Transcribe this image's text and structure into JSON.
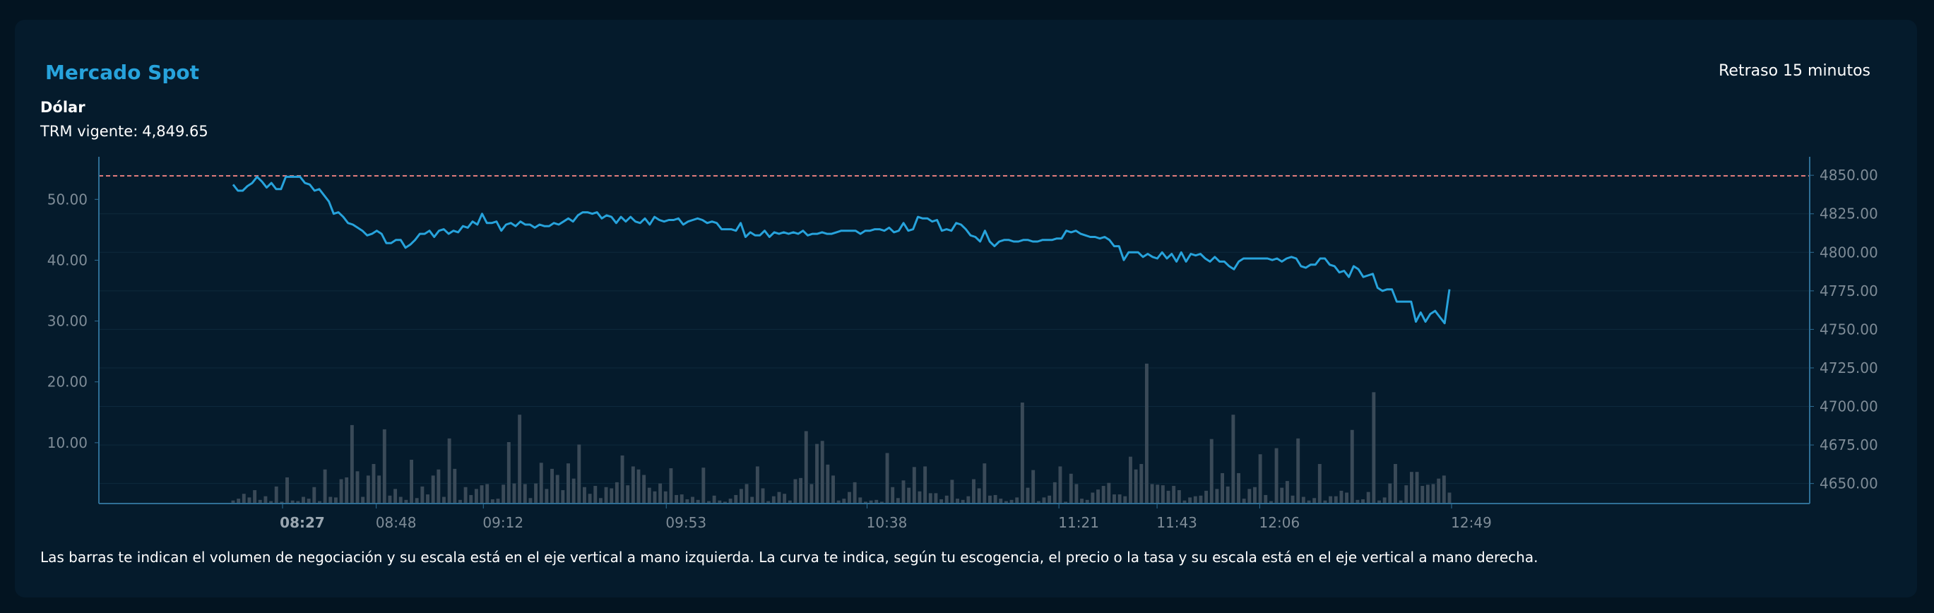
{
  "header": {
    "title": "Mercado Spot",
    "delay_label": "Retraso 15 minutos",
    "currency": "Dólar",
    "trm_label": "TRM vigente:",
    "trm_value": "4,849.65"
  },
  "footnote": "Las barras te indican el volumen de negociación y su escala está en el eje vertical a mano izquierda. La curva te indica, según tu escogencia, el precio o la tasa y su escala está en el eje vertical a mano derecha.",
  "colors": {
    "line": "#27a3dc",
    "bars": "#3a4a58",
    "reference": "#e07a7a",
    "axis": "#2f6f96"
  },
  "chart_data": {
    "type": "bar+line",
    "x_ticks": [
      "08:27",
      "08:48",
      "09:12",
      "09:53",
      "10:38",
      "11:21",
      "11:43",
      "12:06",
      "12:49"
    ],
    "x_tick_bold": "08:27",
    "left_axis": {
      "ticks": [
        "10.00",
        "20.00",
        "30.00",
        "40.00",
        "50.00"
      ],
      "ylim": [
        0,
        57
      ]
    },
    "right_axis": {
      "ticks": [
        "4650.00",
        "4675.00",
        "4700.00",
        "4725.00",
        "4750.00",
        "4775.00",
        "4800.00",
        "4825.00",
        "4850.00"
      ],
      "ylim": [
        4637,
        4862
      ]
    },
    "reference_line": 4849.65,
    "series": [
      {
        "kind": "bar",
        "axis": "left",
        "values": [
          0.5,
          0.8,
          1.6,
          1,
          2.2,
          0.6,
          1.2,
          0.4,
          2.8,
          0.3,
          4.3,
          0.5,
          0.4,
          1.1,
          0.8,
          2.7,
          0.4,
          5.6,
          1.1,
          1,
          4,
          4.3,
          12.9,
          5.3,
          1.1,
          4.6,
          6.5,
          4.6,
          12.2,
          1.3,
          2.4,
          1.1,
          0.6,
          7.2,
          0.9,
          2.8,
          1.5,
          4.6,
          5.6,
          1.1,
          10.7,
          5.7,
          0.6,
          2.7,
          1.4,
          2.4,
          3,
          3.2,
          0.7,
          0.8,
          3.1,
          10.1,
          3.3,
          14.6,
          3.2,
          0.9,
          3.3,
          6.7,
          2.4,
          5.7,
          4.7,
          2.2,
          6.6,
          4.1,
          9.7,
          2.7,
          1.6,
          2.9,
          0.9,
          2.7,
          2.5,
          3.5,
          7.9,
          3,
          6.1,
          5.6,
          4.7,
          2.6,
          2,
          3.3,
          2,
          5.8,
          1.4,
          1.5,
          0.7,
          1.1,
          0.6,
          5.9,
          0.4,
          1.3,
          0.5,
          0.3,
          0.8,
          1.4,
          2.4,
          3.2,
          1.1,
          6.1,
          2.5,
          0.4,
          1.2,
          1.9,
          1.6,
          0.5,
          4,
          4.2,
          11.9,
          3.2,
          9.8,
          10.3,
          6.4,
          4.6,
          0.5,
          0.8,
          1.9,
          3.5,
          1,
          0.3,
          0.5,
          0.6,
          0.3,
          8.3,
          2.7,
          0.9,
          3.8,
          2.6,
          6,
          2,
          6.1,
          1.7,
          1.7,
          0.7,
          1.3,
          3.9,
          0.8,
          0.6,
          1.2,
          4,
          2.5,
          6.6,
          1.3,
          1.4,
          0.8,
          0.4,
          0.6,
          1,
          16.6,
          2.6,
          5.5,
          0.4,
          1,
          1.3,
          3.5,
          6.1,
          0.3,
          4.9,
          3.2,
          0.8,
          0.6,
          1.8,
          2.3,
          2.9,
          3.4,
          1.5,
          1.5,
          1.2,
          7.7,
          5.6,
          6.5,
          23,
          3.2,
          3.1,
          3,
          2.1,
          2.9,
          2.2,
          0.5,
          1,
          1.2,
          1.3,
          2.1,
          10.6,
          2.4,
          5,
          2.8,
          14.6,
          5,
          0.8,
          2.4,
          2.7,
          8.1,
          1.4,
          0.4,
          9.1,
          2.6,
          3.7,
          1.3,
          10.7,
          1.1,
          0.5,
          0.9,
          6.5,
          0.5,
          1.2,
          1.2,
          2.1,
          1.8,
          12.1,
          0.6,
          0.7,
          1.9,
          18.3,
          0.5,
          1,
          3.3,
          6.5,
          0.5,
          3,
          5.2,
          5.2,
          2.9,
          3.1,
          3.2,
          4.1,
          4.6,
          1.8
        ]
      },
      {
        "kind": "line",
        "axis": "right",
        "values": [
          4844,
          4840,
          4840,
          4843,
          4845,
          4849,
          4846,
          4842,
          4845,
          4841,
          4841,
          4849,
          4849,
          4849,
          4849,
          4845,
          4844,
          4840,
          4841,
          4837,
          4833,
          4825,
          4826,
          4823,
          4819,
          4818,
          4816,
          4814,
          4811,
          4812,
          4814,
          4812,
          4806,
          4806,
          4808,
          4808,
          4803,
          4805,
          4808,
          4812,
          4812,
          4814,
          4810,
          4814,
          4815,
          4812,
          4814,
          4813,
          4817,
          4816,
          4820,
          4818,
          4825,
          4819,
          4819,
          4820,
          4814,
          4818,
          4819,
          4817,
          4820,
          4818,
          4818,
          4816,
          4818,
          4817,
          4817,
          4819,
          4818,
          4820,
          4822,
          4820,
          4824,
          4826,
          4826,
          4825,
          4826,
          4822,
          4824,
          4823,
          4819,
          4823,
          4820,
          4823,
          4820,
          4819,
          4822,
          4818,
          4823,
          4821,
          4820,
          4821,
          4821,
          4822,
          4818,
          4820,
          4821,
          4822,
          4821,
          4819,
          4820,
          4819,
          4815,
          4815,
          4815,
          4814,
          4819,
          4810,
          4813,
          4811,
          4811,
          4814,
          4810,
          4813,
          4812,
          4813,
          4812,
          4813,
          4812,
          4814,
          4811,
          4812,
          4812,
          4813,
          4812,
          4812,
          4813,
          4814,
          4814,
          4814,
          4814,
          4812,
          4814,
          4814,
          4815,
          4815,
          4814,
          4816,
          4813,
          4814,
          4819,
          4814,
          4815,
          4823,
          4822,
          4822,
          4820,
          4821,
          4814,
          4815,
          4814,
          4819,
          4818,
          4815,
          4811,
          4810,
          4807,
          4814,
          4807,
          4804,
          4807,
          4808,
          4808,
          4807,
          4807,
          4808,
          4808,
          4807,
          4807,
          4808,
          4808,
          4808,
          4809,
          4809,
          4814,
          4813,
          4814,
          4812,
          4811,
          4810,
          4810,
          4809,
          4810,
          4808,
          4804,
          4804,
          4795,
          4800,
          4800,
          4800,
          4797,
          4799,
          4797,
          4796,
          4800,
          4796,
          4799,
          4794,
          4800,
          4794,
          4799,
          4798,
          4799,
          4796,
          4794,
          4797,
          4794,
          4794,
          4791,
          4789,
          4794,
          4796,
          4796,
          4796,
          4796,
          4796,
          4796,
          4795,
          4796,
          4794,
          4796,
          4797,
          4796,
          4791,
          4790,
          4792,
          4792,
          4796,
          4796,
          4792,
          4791,
          4787,
          4788,
          4784,
          4791,
          4789,
          4784,
          4785,
          4786,
          4777,
          4775,
          4776,
          4776,
          4768,
          4768,
          4768,
          4768,
          4755,
          4761,
          4755,
          4760,
          4762,
          4758,
          4754,
          4776
        ]
      }
    ]
  }
}
